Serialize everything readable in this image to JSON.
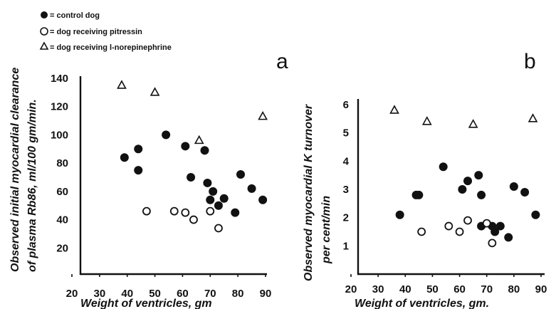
{
  "legend": [
    {
      "marker": "filled-circle",
      "label": "= control dog"
    },
    {
      "marker": "open-circle",
      "label": "= dog receiving pitressin"
    },
    {
      "marker": "open-triangle",
      "label": "= dog receiving l-norepinephrine"
    }
  ],
  "chart_data": [
    {
      "type": "scatter",
      "panel_label": "a",
      "xlabel": "Weight of ventricles, gm",
      "ylabel_lines": [
        "Observed initial myocardial clearance",
        "of plasma Rb86, ml/100 gm/min."
      ],
      "xlim": [
        20,
        90
      ],
      "ylim": [
        0,
        140
      ],
      "xticks": [
        20,
        30,
        40,
        50,
        60,
        70,
        80,
        90
      ],
      "yticks": [
        20,
        40,
        60,
        80,
        100,
        120,
        140
      ],
      "ytick_labels": [
        "20",
        "40",
        "60",
        "80",
        "100",
        "120",
        "140"
      ],
      "series": [
        {
          "name": "control dog",
          "marker": "filled-circle",
          "points": [
            [
              39,
              84
            ],
            [
              44,
              90
            ],
            [
              44,
              75
            ],
            [
              54,
              100
            ],
            [
              61,
              92
            ],
            [
              63,
              70
            ],
            [
              68,
              89
            ],
            [
              69,
              66
            ],
            [
              70,
              54
            ],
            [
              71,
              60
            ],
            [
              73,
              50
            ],
            [
              75,
              55
            ],
            [
              79,
              45
            ],
            [
              81,
              72
            ],
            [
              85,
              62
            ],
            [
              89,
              54
            ]
          ]
        },
        {
          "name": "dog receiving pitressin",
          "marker": "open-circle",
          "points": [
            [
              47,
              46
            ],
            [
              57,
              46
            ],
            [
              61,
              45
            ],
            [
              64,
              40
            ],
            [
              70,
              46
            ],
            [
              73,
              34
            ]
          ]
        },
        {
          "name": "dog receiving l-norepinephrine",
          "marker": "open-triangle",
          "points": [
            [
              38,
              135
            ],
            [
              50,
              130
            ],
            [
              66,
              96
            ],
            [
              89,
              113
            ]
          ]
        }
      ]
    },
    {
      "type": "scatter",
      "panel_label": "b",
      "xlabel": "Weight of ventricles, gm.",
      "ylabel_lines": [
        "Observed myocardial K turnover",
        "per cent/min"
      ],
      "xlim": [
        20,
        90
      ],
      "ylim": [
        0,
        6
      ],
      "xticks": [
        20,
        30,
        40,
        50,
        60,
        70,
        80,
        90
      ],
      "yticks": [
        1,
        2,
        3,
        4,
        5,
        6
      ],
      "ytick_labels": [
        "1",
        "2",
        "3",
        "4",
        "5",
        "6"
      ],
      "series": [
        {
          "name": "control dog",
          "marker": "filled-circle",
          "points": [
            [
              38,
              2.1
            ],
            [
              44,
              2.8
            ],
            [
              45,
              2.8
            ],
            [
              54,
              3.8
            ],
            [
              61,
              3.0
            ],
            [
              63,
              3.3
            ],
            [
              67,
              3.5
            ],
            [
              68,
              2.8
            ],
            [
              68,
              1.7
            ],
            [
              72,
              1.7
            ],
            [
              73,
              1.5
            ],
            [
              75,
              1.7
            ],
            [
              78,
              1.3
            ],
            [
              80,
              3.1
            ],
            [
              84,
              2.9
            ],
            [
              88,
              2.1
            ]
          ]
        },
        {
          "name": "dog receiving pitressin",
          "marker": "open-circle",
          "points": [
            [
              46,
              1.5
            ],
            [
              56,
              1.7
            ],
            [
              60,
              1.5
            ],
            [
              63,
              1.9
            ],
            [
              70,
              1.8
            ],
            [
              72,
              1.1
            ]
          ]
        },
        {
          "name": "dog receiving l-norepinephrine",
          "marker": "open-triangle",
          "points": [
            [
              36,
              5.8
            ],
            [
              48,
              5.4
            ],
            [
              65,
              5.3
            ],
            [
              87,
              5.5
            ]
          ]
        }
      ]
    }
  ]
}
